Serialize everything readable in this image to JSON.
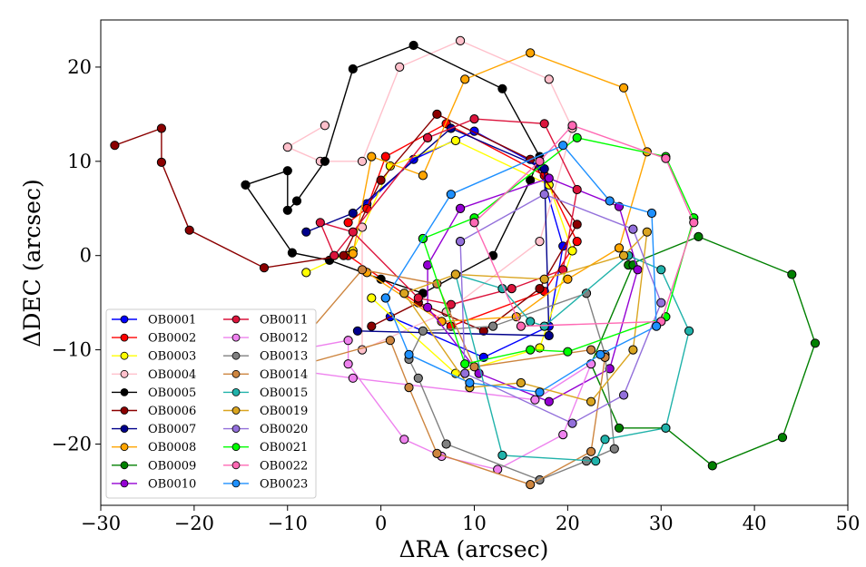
{
  "chart_data": {
    "type": "scatter",
    "title": "",
    "xlabel": "ΔRA (arcsec)",
    "ylabel": "ΔDEC (arcsec)",
    "xlim": [
      -30,
      50
    ],
    "ylim": [
      -26.5,
      25
    ],
    "x_ticks": [
      -30,
      -20,
      -10,
      0,
      10,
      20,
      30,
      40,
      50
    ],
    "x_tick_labels": [
      "−30",
      "−20",
      "−10",
      "0",
      "10",
      "20",
      "30",
      "40",
      "50"
    ],
    "y_ticks": [
      -20,
      -10,
      0,
      10,
      20
    ],
    "y_tick_labels": [
      "−20",
      "−10",
      "0",
      "10",
      "20"
    ],
    "grid": false,
    "legend_position": "lower-left",
    "legend_columns": 2,
    "series": [
      {
        "name": "OB0001",
        "color": "#0000ff",
        "x": [
          -1.5,
          3.5,
          10,
          17,
          19.5,
          18,
          11,
          1
        ],
        "y": [
          5.5,
          10.2,
          13.2,
          9.5,
          1,
          -7.5,
          -10.8,
          -6.5
        ]
      },
      {
        "name": "OB0002",
        "color": "#ff0000",
        "x": [
          -3.5,
          -1.5,
          0.5,
          7,
          17.5,
          21,
          17.5,
          7.5,
          -3.5
        ],
        "y": [
          3.5,
          5,
          10.5,
          14,
          8.5,
          1.5,
          -3.8,
          -7.5,
          0
        ]
      },
      {
        "name": "OB0003",
        "color": "#ffff00",
        "x": [
          -8,
          -3,
          1,
          8,
          18,
          20.5,
          17,
          8,
          -1
        ],
        "y": [
          -1.8,
          0.5,
          9.5,
          12.2,
          7.5,
          0.5,
          -9.8,
          -12.5,
          -4.5
        ]
      },
      {
        "name": "OB0004",
        "color": "#ffc0cb",
        "x": [
          -6,
          -10,
          -6.5,
          -2,
          2,
          8.5,
          18,
          20.5,
          17,
          7,
          -2,
          -2
        ],
        "y": [
          13.8,
          11.5,
          10,
          10,
          20,
          22.8,
          18.7,
          13.5,
          1.5,
          -6,
          -10,
          3
        ]
      },
      {
        "name": "OB0005",
        "color": "#000000",
        "x": [
          -14.5,
          -10,
          -10,
          -9,
          -6,
          -3,
          3.5,
          13,
          17,
          16,
          12,
          4.5,
          0,
          -5.5,
          -9.5,
          -14.5
        ],
        "y": [
          7.5,
          9,
          4.8,
          5.8,
          10,
          19.8,
          22.3,
          17.7,
          10.5,
          8,
          0,
          -4,
          -2.5,
          -0.5,
          0.3,
          7.5
        ]
      },
      {
        "name": "OB0006",
        "color": "#8b0000",
        "x": [
          -28.5,
          -23.5,
          -23.5,
          -20.5,
          -12.5,
          -4,
          0,
          6,
          16,
          21,
          17,
          11,
          4,
          -1
        ],
        "y": [
          11.7,
          13.5,
          9.9,
          2.7,
          -1.3,
          0,
          8,
          15,
          10.2,
          3.3,
          -3.5,
          -8,
          -5,
          -7.5
        ]
      },
      {
        "name": "OB0007",
        "color": "#00008b",
        "x": [
          -8,
          -3,
          7.5,
          17.5,
          18,
          -2.5
        ],
        "y": [
          2.5,
          4.5,
          13.5,
          9.2,
          -8.5,
          -8
        ]
      },
      {
        "name": "OB0008",
        "color": "#ffa500",
        "x": [
          -3,
          -1,
          4.5,
          9,
          16,
          26,
          28.5,
          25.5,
          20,
          14.5,
          6.5,
          -1.5
        ],
        "y": [
          0.2,
          10.5,
          8.5,
          18.7,
          21.5,
          17.8,
          11,
          0.8,
          -2.5,
          -6.5,
          -7,
          -1.8
        ]
      },
      {
        "name": "OB0009",
        "color": "#008000",
        "x": [
          26.5,
          34,
          44,
          46.5,
          43,
          35.5,
          30.5,
          25.5,
          22.5,
          27
        ],
        "y": [
          -1,
          2,
          -2,
          -9.3,
          -19.3,
          -22.3,
          -18.3,
          -18.3,
          -11.5,
          -1
        ]
      },
      {
        "name": "OB0010",
        "color": "#9400d3",
        "x": [
          8.5,
          18,
          25.5,
          27.5,
          24.5,
          18,
          10.5,
          5,
          5,
          8.5
        ],
        "y": [
          5,
          8.2,
          5.2,
          -1.5,
          -12,
          -15.5,
          -12.5,
          -5.5,
          -1,
          5
        ]
      },
      {
        "name": "OB0011",
        "color": "#dc143c",
        "x": [
          5,
          10,
          17.5,
          21,
          19.5,
          14,
          7.5,
          4,
          -3,
          -6.5,
          -5,
          5
        ],
        "y": [
          12.5,
          14.5,
          14,
          7,
          -1.5,
          -3.5,
          -5.2,
          -4.5,
          2.5,
          3.5,
          0,
          12.5
        ]
      },
      {
        "name": "OB0012",
        "color": "#ee82ee",
        "x": [
          -16,
          -3.5,
          -3.5,
          2.5,
          6.5,
          12.5,
          19.5,
          22.5,
          16.5,
          -3,
          -16
        ],
        "y": [
          -11.3,
          -9,
          -11.5,
          -19.5,
          -21.3,
          -22.7,
          -19,
          -11.5,
          -15.3,
          -13,
          -11.3
        ]
      },
      {
        "name": "OB0013",
        "color": "#808080",
        "x": [
          22,
          24,
          25,
          22,
          17,
          7,
          4,
          3,
          4.5,
          12,
          22
        ],
        "y": [
          -4,
          -10.5,
          -20.5,
          -21.8,
          -23.8,
          -20,
          -13,
          -11,
          -8,
          -7.5,
          -4
        ]
      },
      {
        "name": "OB0014",
        "color": "#cd853f",
        "x": [
          -11.5,
          -10,
          1,
          3,
          6,
          16,
          22.5,
          24,
          22.5,
          10,
          6,
          -2,
          -11.5
        ],
        "y": [
          -12.5,
          -12,
          -9,
          -14,
          -21,
          -24.3,
          -20.8,
          -10.8,
          -10,
          -11.8,
          -3,
          -1.5,
          -12.5
        ]
      },
      {
        "name": "OB0015",
        "color": "#20b2aa",
        "x": [
          8,
          13,
          16,
          17.5,
          26.5,
          30,
          33,
          30.5,
          24,
          23,
          13,
          8
        ],
        "y": [
          -2,
          -3.5,
          -7,
          -7.5,
          0,
          -1.5,
          -8,
          -18.3,
          -19.5,
          -21.8,
          -21.2,
          -2
        ]
      },
      {
        "name": "OB0019",
        "color": "#daa520",
        "x": [
          2.5,
          8,
          17.5,
          26,
          28.5,
          27,
          22.5,
          15,
          9.5,
          2.5
        ],
        "y": [
          -4,
          -2,
          -2.5,
          0,
          2.5,
          -10,
          -15.5,
          -13.5,
          -14,
          -4
        ]
      },
      {
        "name": "OB0020",
        "color": "#9370db",
        "x": [
          8.5,
          17.5,
          27,
          30,
          26,
          20.5,
          9,
          8.5
        ],
        "y": [
          1.5,
          6.5,
          2.8,
          -5,
          -14.8,
          -17.8,
          -12.5,
          1.5
        ]
      },
      {
        "name": "OB0021",
        "color": "#00ff00",
        "x": [
          4.5,
          10,
          21,
          30.5,
          33.5,
          30.5,
          20,
          16,
          9,
          4.5
        ],
        "y": [
          1.8,
          4,
          12.5,
          10.5,
          4,
          -6.5,
          -10.2,
          -10,
          -11.5,
          1.8
        ]
      },
      {
        "name": "OB0022",
        "color": "#ff69b4",
        "x": [
          10,
          17,
          20.5,
          30.5,
          33.5,
          30,
          15,
          10
        ],
        "y": [
          3.5,
          10,
          13.8,
          10.3,
          3.5,
          -7,
          -7.5,
          3.5
        ]
      },
      {
        "name": "OB0023",
        "color": "#1e90ff",
        "x": [
          0.5,
          7.5,
          19.5,
          24.5,
          29,
          29.5,
          23.5,
          17,
          9.5,
          3,
          0.5
        ],
        "y": [
          -4.5,
          6.5,
          11.7,
          5.8,
          4.5,
          -7.5,
          -10.5,
          -14.5,
          -13.5,
          -10.5,
          -4.5
        ]
      }
    ]
  }
}
